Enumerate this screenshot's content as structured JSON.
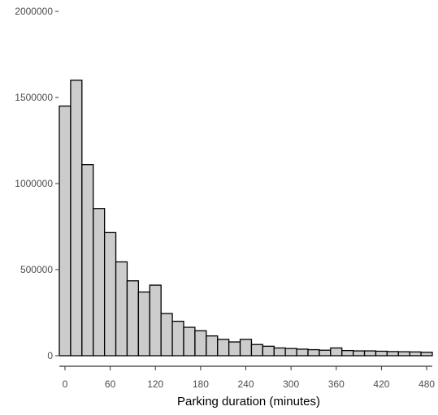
{
  "chart_data": {
    "type": "bar",
    "title": "",
    "xlabel": "Parking duration (minutes)",
    "ylabel": "",
    "bin_width_minutes": 15,
    "xlim": [
      -7.5,
      487.5
    ],
    "ylim": [
      0,
      2000000
    ],
    "x_ticks": [
      0,
      60,
      120,
      180,
      240,
      300,
      360,
      420,
      480
    ],
    "x_tick_labels": [
      "0",
      "60",
      "120",
      "180",
      "240",
      "300",
      "360",
      "420",
      "480"
    ],
    "y_ticks": [
      0,
      500000,
      1000000,
      1500000,
      2000000
    ],
    "y_tick_labels": [
      "0",
      "500000",
      "1000000",
      "1500000",
      "2000000"
    ],
    "bin_centers": [
      0,
      15,
      30,
      45,
      60,
      75,
      90,
      105,
      120,
      135,
      150,
      165,
      180,
      195,
      210,
      225,
      240,
      255,
      270,
      285,
      300,
      315,
      330,
      345,
      360,
      375,
      390,
      405,
      420,
      435,
      450,
      465,
      480
    ],
    "values": [
      1450000,
      1600000,
      1110000,
      855000,
      715000,
      545000,
      435000,
      370000,
      410000,
      245000,
      200000,
      165000,
      145000,
      115000,
      95000,
      80000,
      95000,
      65000,
      55000,
      45000,
      42000,
      38000,
      35000,
      32000,
      45000,
      30000,
      28000,
      28000,
      26000,
      24000,
      23000,
      22000,
      20000
    ],
    "fill_color": "#cccccc",
    "edge_color": "#000000",
    "grid": false,
    "legend": "none"
  }
}
